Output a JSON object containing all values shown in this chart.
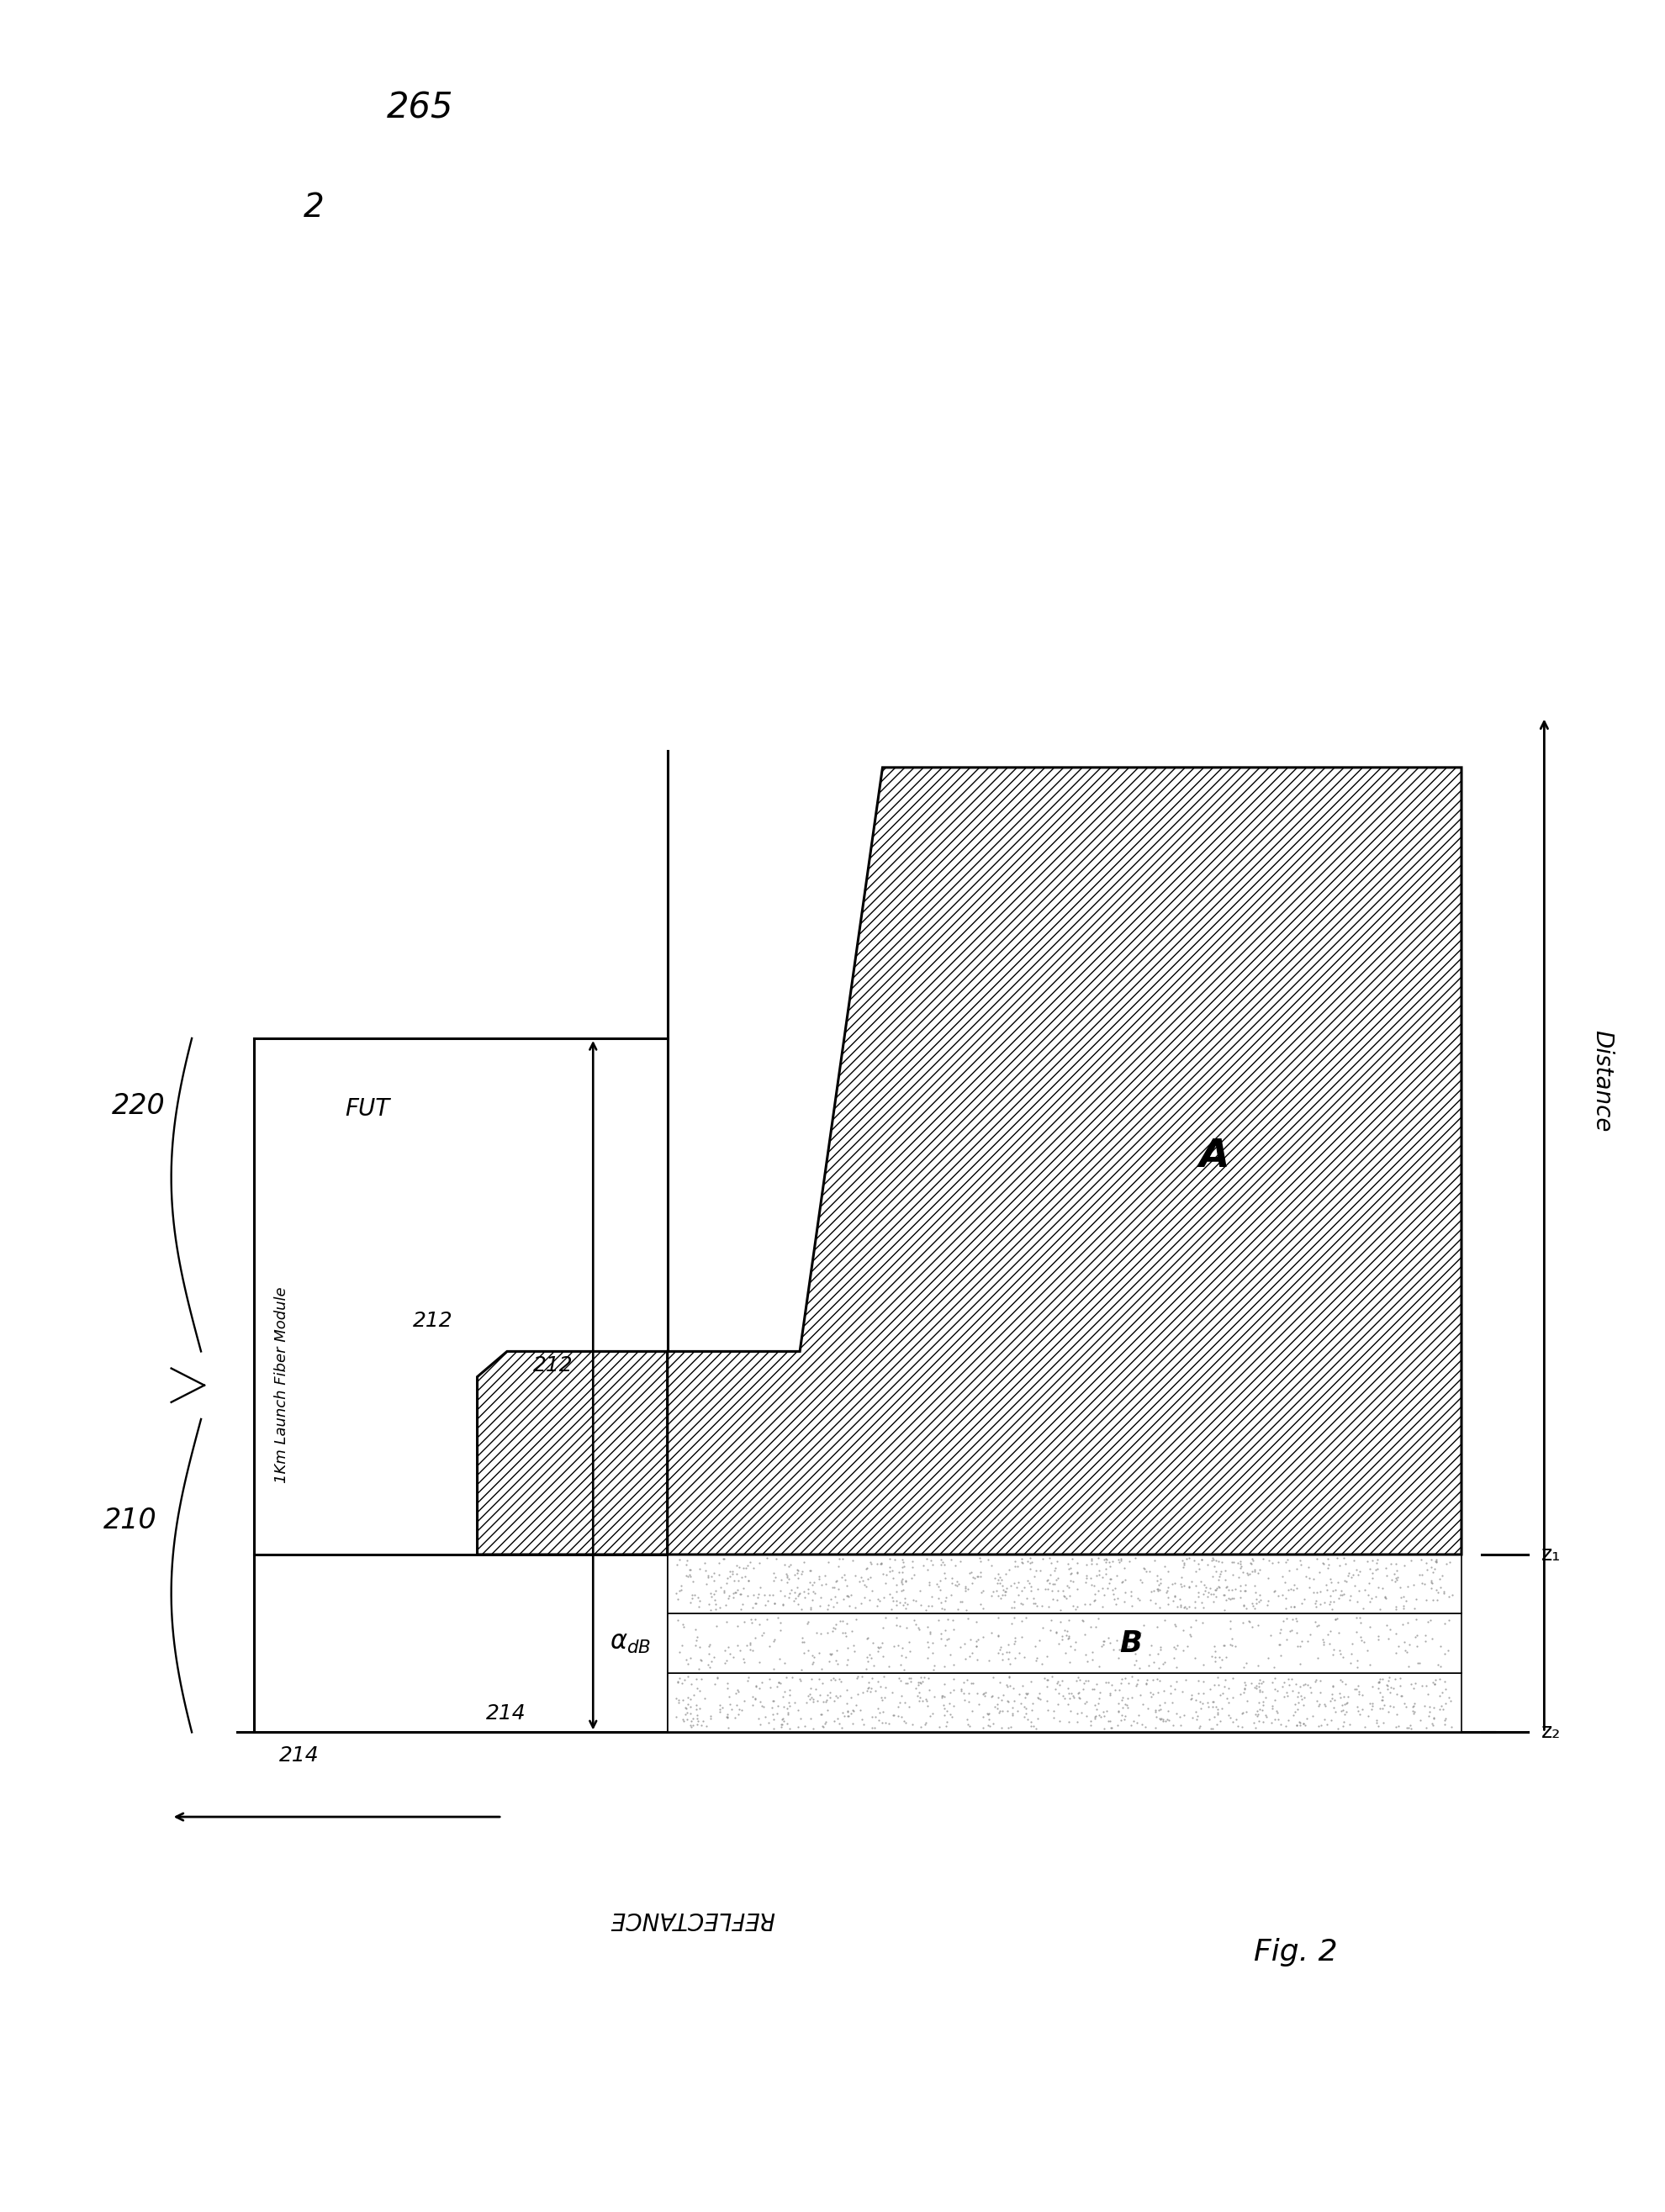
{
  "bg_color": "#ffffff",
  "fig_width": 19.81,
  "fig_height": 26.31,
  "fig_label_text": "Fig. 2",
  "corner_label_1": "265",
  "corner_label_2": "2",
  "ref_label_220": "220",
  "ref_label_210": "210",
  "label_FUT": "FUT",
  "label_1km": "1Km Launch Fiber Module",
  "label_A": "A",
  "label_B": "B",
  "label_212_bump": "212",
  "label_212_arrow": "212",
  "label_214a": "214",
  "label_214b": "214",
  "label_z1": "z₁",
  "label_z2": "z₂",
  "axis_x_label": "Distance",
  "axis_y_label": "REFLECTANCE"
}
